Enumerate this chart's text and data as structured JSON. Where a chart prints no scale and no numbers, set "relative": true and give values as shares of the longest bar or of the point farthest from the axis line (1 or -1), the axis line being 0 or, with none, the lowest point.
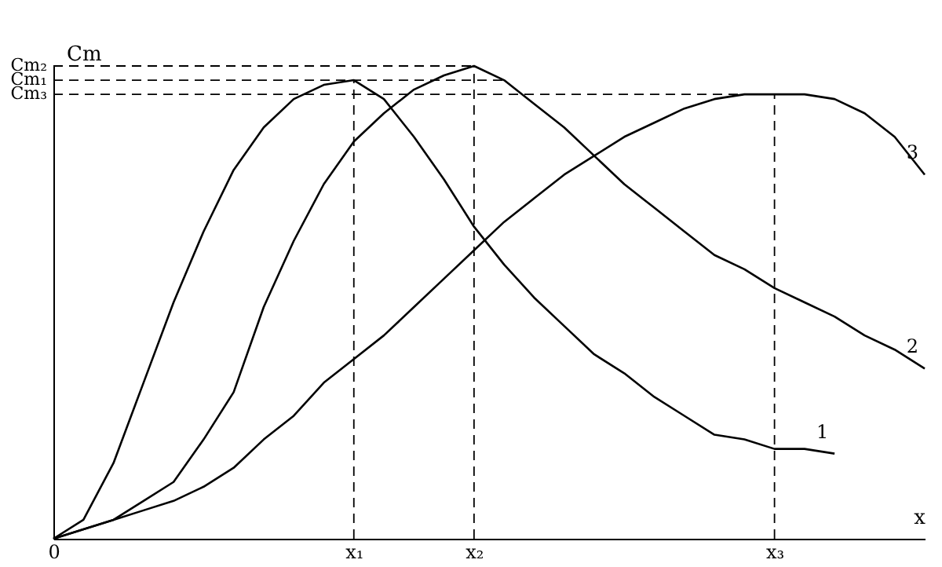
{
  "chart_data": {
    "type": "line",
    "relative": true,
    "xlabel": "x",
    "ylabel": "Cm",
    "grid": false,
    "marker": "none",
    "line_style": "solid",
    "categories": [
      "0",
      null,
      null,
      null,
      null,
      null,
      null,
      null,
      null,
      null,
      "x₁",
      null,
      null,
      null,
      "x₂",
      null,
      null,
      null,
      null,
      null,
      null,
      null,
      null,
      null,
      "x₃",
      null,
      null,
      null,
      null,
      null
    ],
    "series": [
      {
        "name": "1",
        "color": "#000000",
        "values": [
          0,
          0.04,
          0.16,
          0.33,
          0.5,
          0.65,
          0.78,
          0.87,
          0.93,
          0.96,
          0.97,
          0.93,
          0.85,
          0.76,
          0.66,
          0.58,
          0.51,
          0.45,
          0.39,
          0.35,
          0.3,
          0.26,
          0.22,
          0.21,
          0.19,
          0.19,
          0.18,
          null,
          null,
          null
        ]
      },
      {
        "name": "2",
        "color": "#000000",
        "values": [
          0,
          0.02,
          0.04,
          0.08,
          0.12,
          0.21,
          0.31,
          0.49,
          0.63,
          0.75,
          0.84,
          0.9,
          0.95,
          0.98,
          1,
          0.97,
          0.92,
          0.87,
          0.81,
          0.75,
          0.7,
          0.65,
          0.6,
          0.57,
          0.53,
          0.5,
          0.47,
          0.43,
          0.4,
          0.36
        ]
      },
      {
        "name": "3",
        "color": "#000000",
        "values": [
          0,
          0.02,
          0.04,
          0.06,
          0.08,
          0.11,
          0.15,
          0.21,
          0.26,
          0.33,
          0.38,
          0.43,
          0.49,
          0.55,
          0.61,
          0.67,
          0.72,
          0.77,
          0.81,
          0.85,
          0.88,
          0.91,
          0.93,
          0.94,
          0.94,
          0.94,
          0.93,
          0.9,
          0.85,
          0.77
        ]
      }
    ],
    "ref_lines": [
      {
        "axis": "y",
        "value": 1,
        "label": "Cm₂",
        "line_style": "dashed"
      },
      {
        "axis": "y",
        "value": 0.97,
        "label": "Cm₁",
        "line_style": "dashed"
      },
      {
        "axis": "y",
        "value": 0.94,
        "label": "Cm₃",
        "line_style": "dashed"
      },
      {
        "axis": "x",
        "value": "x₁",
        "line_style": "dashed"
      },
      {
        "axis": "x",
        "value": "x₂",
        "line_style": "dashed"
      },
      {
        "axis": "x",
        "value": "x₃",
        "line_style": "dashed"
      }
    ]
  }
}
